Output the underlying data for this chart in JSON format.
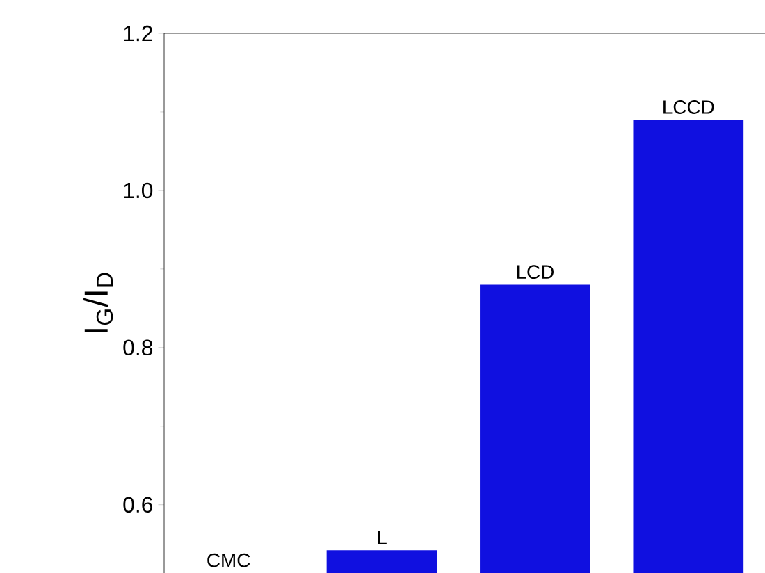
{
  "chart_data": {
    "type": "bar",
    "ylabel": "I$_{G}$/I$_{D}$",
    "categories": [
      "CMC",
      "L",
      "LCD",
      "LCCD"
    ],
    "values": [
      null,
      0.542,
      0.88,
      1.09
    ],
    "color": "#1010e0",
    "ylim": [
      0.513,
      1.2
    ],
    "yticks": [
      0.6,
      0.8,
      {
        "value": 1.0,
        "label": "1.0"
      },
      1.2
    ]
  }
}
